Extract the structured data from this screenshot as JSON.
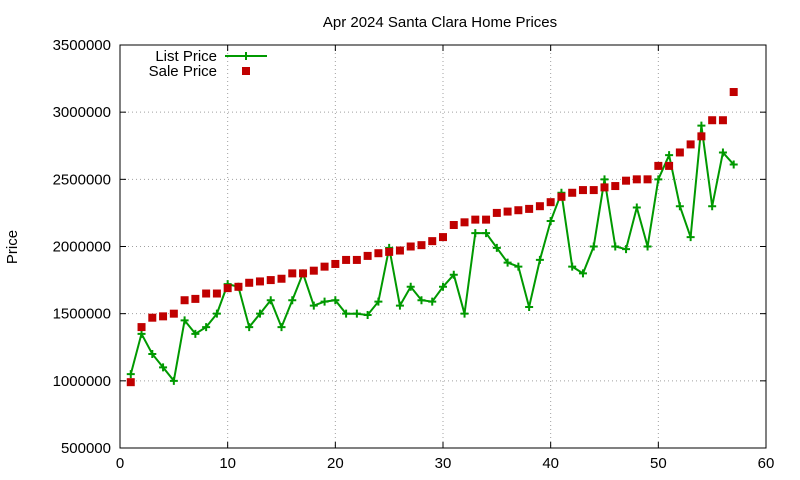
{
  "chart_data": {
    "type": "scatter",
    "title": "Apr 2024 Santa Clara Home Prices",
    "xlabel": "",
    "ylabel": "Price",
    "xlim": [
      0,
      60
    ],
    "ylim": [
      500000,
      3500000
    ],
    "x_ticks": [
      0,
      10,
      20,
      30,
      40,
      50,
      60
    ],
    "y_ticks": [
      500000,
      1000000,
      1500000,
      2000000,
      2500000,
      3000000,
      3500000
    ],
    "grid": true,
    "legend_position": "top-left",
    "series": [
      {
        "name": "List Price",
        "style": "lines+points",
        "color": "#009900",
        "marker": "plus",
        "x": [
          1,
          2,
          3,
          4,
          5,
          6,
          7,
          8,
          9,
          10,
          11,
          12,
          13,
          14,
          15,
          16,
          17,
          18,
          19,
          20,
          21,
          22,
          23,
          24,
          25,
          26,
          27,
          28,
          29,
          30,
          31,
          32,
          33,
          34,
          35,
          36,
          37,
          38,
          39,
          40,
          41,
          42,
          43,
          44,
          45,
          46,
          47,
          48,
          49,
          50,
          51,
          52,
          53,
          54,
          55,
          56,
          57
        ],
        "values": [
          1050000,
          1350000,
          1200000,
          1100000,
          1000000,
          1450000,
          1350000,
          1400000,
          1500000,
          1720000,
          1700000,
          1400000,
          1500000,
          1600000,
          1400000,
          1600000,
          1800000,
          1560000,
          1590000,
          1600000,
          1500000,
          1500000,
          1490000,
          1590000,
          1990000,
          1560000,
          1700000,
          1600000,
          1590000,
          1700000,
          1790000,
          1500000,
          2100000,
          2100000,
          1990000,
          1880000,
          1850000,
          1550000,
          1900000,
          2190000,
          2400000,
          1850000,
          1800000,
          2000000,
          2500000,
          2000000,
          1980000,
          2290000,
          2000000,
          2500000,
          2680000,
          2300000,
          2070000,
          2900000,
          2300000,
          2700000,
          2610000
        ]
      },
      {
        "name": "Sale Price",
        "style": "points",
        "color": "#c00000",
        "marker": "square",
        "x": [
          1,
          2,
          3,
          4,
          5,
          6,
          7,
          8,
          9,
          10,
          11,
          12,
          13,
          14,
          15,
          16,
          17,
          18,
          19,
          20,
          21,
          22,
          23,
          24,
          25,
          26,
          27,
          28,
          29,
          30,
          31,
          32,
          33,
          34,
          35,
          36,
          37,
          38,
          39,
          40,
          41,
          42,
          43,
          44,
          45,
          46,
          47,
          48,
          49,
          50,
          51,
          52,
          53,
          54,
          55,
          56,
          57
        ],
        "values": [
          990000,
          1400000,
          1470000,
          1480000,
          1500000,
          1600000,
          1610000,
          1650000,
          1650000,
          1690000,
          1700000,
          1730000,
          1740000,
          1750000,
          1760000,
          1800000,
          1800000,
          1820000,
          1850000,
          1870000,
          1900000,
          1900000,
          1930000,
          1950000,
          1960000,
          1970000,
          2000000,
          2010000,
          2040000,
          2070000,
          2160000,
          2180000,
          2200000,
          2200000,
          2250000,
          2260000,
          2270000,
          2280000,
          2300000,
          2330000,
          2370000,
          2400000,
          2420000,
          2420000,
          2440000,
          2450000,
          2490000,
          2500000,
          2500000,
          2600000,
          2600000,
          2700000,
          2760000,
          2820000,
          2940000,
          2940000,
          3150000
        ]
      }
    ]
  }
}
